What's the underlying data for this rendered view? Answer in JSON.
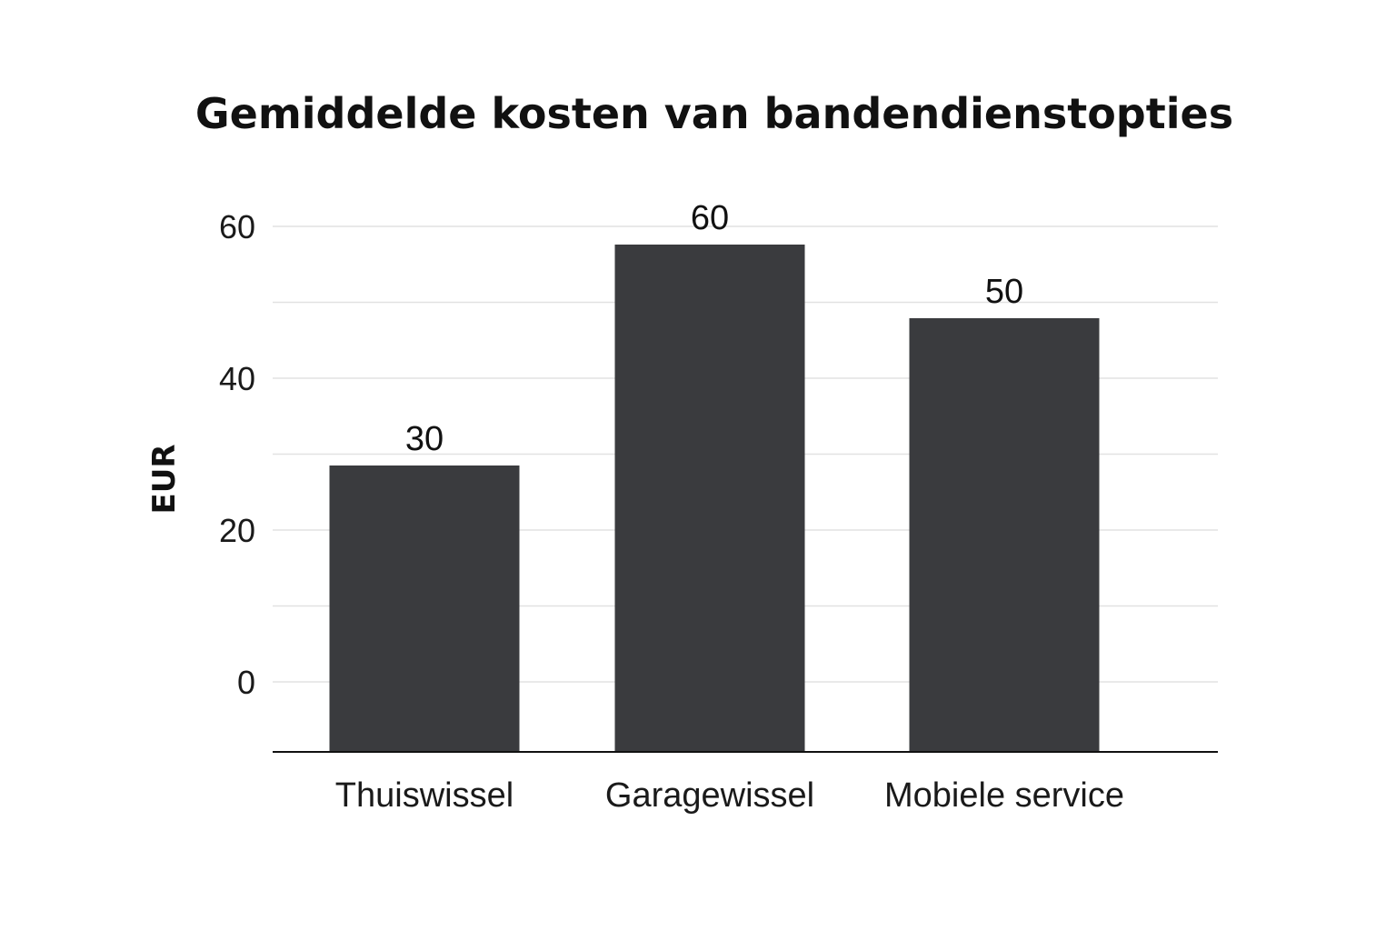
{
  "chart_data": {
    "type": "bar",
    "title": "Gemiddelde kosten van bandendienstopties",
    "xlabel": "",
    "ylabel": "EUR",
    "categories": [
      "Thuiswissel",
      "Garagewissel",
      "Mobiele service"
    ],
    "values": [
      30,
      60,
      50
    ],
    "data_labels": [
      "30",
      "60",
      "50"
    ],
    "yticks": [
      0,
      20,
      40,
      60
    ],
    "ytick_labels": [
      "0",
      "20",
      "40",
      "60"
    ],
    "grid": true,
    "bar_color": "#3a3b3e",
    "gridline_color": "#e2e2e2"
  }
}
